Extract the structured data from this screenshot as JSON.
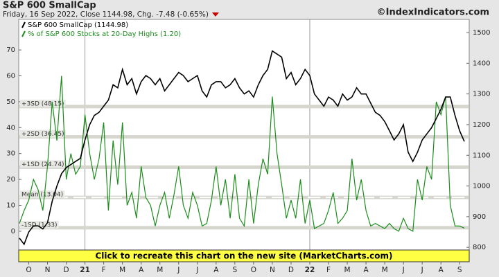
{
  "chart_data": {
    "type": "line",
    "title": "S&P 600 SmallCap",
    "subtitle": "Friday, 16 Sep 2022, Close 1144.98, Chg. -7.48 (-0.65%)",
    "source": "©IndexIndicators.com",
    "banner": "Click to recreate this chart on the new site (MarketCharts.com)",
    "categories": [
      null,
      null,
      "O",
      null,
      null,
      null,
      "N",
      null,
      null,
      null,
      "D",
      null,
      null,
      null,
      "21",
      null,
      null,
      null,
      "F",
      null,
      null,
      null,
      "M",
      null,
      null,
      null,
      "A",
      null,
      null,
      null,
      "M",
      null,
      null,
      null,
      "J",
      null,
      null,
      null,
      "J",
      null,
      null,
      null,
      "A",
      null,
      null,
      null,
      "S",
      null,
      null,
      null,
      "O",
      null,
      null,
      null,
      "N",
      null,
      null,
      null,
      "D",
      null,
      null,
      null,
      "22",
      null,
      null,
      null,
      "F",
      null,
      null,
      null,
      "M",
      null,
      null,
      null,
      "A",
      null,
      null,
      null,
      "M",
      null,
      null,
      null,
      "J",
      null,
      null,
      null,
      "J",
      null,
      null,
      null,
      "A",
      null,
      null,
      null,
      "S",
      null
    ],
    "series": [
      {
        "name": "S&P 600 SmallCap (1144.98)",
        "color": "#000000",
        "axis": "y2",
        "values": [
          830,
          810,
          850,
          870,
          870,
          860,
          880,
          950,
          1000,
          1040,
          1060,
          1070,
          1080,
          1090,
          1150,
          1200,
          1230,
          1240,
          1260,
          1280,
          1330,
          1320,
          1380,
          1330,
          1350,
          1300,
          1340,
          1360,
          1350,
          1330,
          1350,
          1310,
          1330,
          1350,
          1370,
          1360,
          1340,
          1350,
          1360,
          1310,
          1290,
          1330,
          1340,
          1340,
          1320,
          1330,
          1350,
          1320,
          1300,
          1310,
          1290,
          1330,
          1360,
          1380,
          1440,
          1430,
          1420,
          1350,
          1370,
          1330,
          1350,
          1380,
          1360,
          1300,
          1280,
          1260,
          1290,
          1280,
          1260,
          1300,
          1280,
          1290,
          1320,
          1300,
          1300,
          1270,
          1240,
          1230,
          1210,
          1180,
          1150,
          1170,
          1200,
          1110,
          1080,
          1110,
          1150,
          1170,
          1190,
          1220,
          1250,
          1290,
          1290,
          1230,
          1180,
          1144.98
        ]
      },
      {
        "name": "% of S&P 600 Stocks at 20-Day Highs (1.20)",
        "color": "#1a8c1a",
        "values": [
          3,
          8,
          12,
          20,
          16,
          8,
          25,
          50,
          35,
          60,
          20,
          30,
          22,
          25,
          45,
          30,
          20,
          28,
          42,
          8,
          35,
          18,
          42,
          10,
          15,
          5,
          25,
          13,
          10,
          2,
          10,
          15,
          5,
          14,
          25,
          10,
          5,
          15,
          10,
          2,
          3,
          12,
          25,
          10,
          20,
          5,
          22,
          5,
          2,
          20,
          3,
          18,
          28,
          22,
          52,
          30,
          18,
          5,
          12,
          5,
          20,
          3,
          12,
          1,
          2,
          3,
          8,
          15,
          3,
          5,
          8,
          28,
          12,
          20,
          8,
          2,
          3,
          2,
          1,
          3,
          1,
          0,
          5,
          1,
          0,
          20,
          12,
          25,
          20,
          50,
          45,
          52,
          10,
          2,
          2,
          1.2
        ]
      }
    ],
    "bands": [
      {
        "label": "+3SD (48.15)",
        "value": 48.15
      },
      {
        "label": "+2SD (36.45)",
        "value": 36.45
      },
      {
        "label": "+1SD (24.74)",
        "value": 24.74
      },
      {
        "label": "Mean (13.04)",
        "value": 13.04,
        "dashed": true
      },
      {
        "label": "-1SD (1.33)",
        "value": 1.33
      }
    ],
    "ylim": [
      -11.8,
      81.8
    ],
    "yticks": [
      0,
      10,
      20,
      30,
      40,
      50,
      60,
      70
    ],
    "y2lim": [
      753,
      1543
    ],
    "y2ticks": [
      800,
      900,
      1000,
      1100,
      1200,
      1300,
      1400,
      1500
    ],
    "legend": "upper left"
  }
}
